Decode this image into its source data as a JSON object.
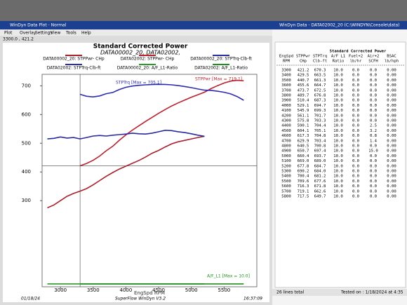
{
  "plot_window": {
    "title": "WinDyn Data Plot - Normal",
    "menu": [
      "Plot",
      "Overlay",
      "Settings",
      "View",
      "Tools",
      "Help"
    ],
    "status": "3300.0 , 421.2",
    "footer": {
      "date": "01/18/24",
      "app": "SuperFlow WinDyn V3.2",
      "time": "16:37:09"
    }
  },
  "chart_data": {
    "type": "line",
    "title": "Standard Corrected Power",
    "subtitle": "DATA00002_20, DATA02002,",
    "x_label": "EngSpd RPM",
    "x": [
      2800,
      2900,
      3000,
      3100,
      3200,
      3300,
      3400,
      3500,
      3600,
      3700,
      3800,
      3900,
      4000,
      4100,
      4200,
      4300,
      4400,
      4500,
      4600,
      4700,
      4800,
      4900,
      5000,
      5100,
      5200,
      5300,
      5400,
      5500,
      5600,
      5700,
      5800
    ],
    "series": [
      {
        "name": "DATA00002_20: STPPwr- CHp",
        "color": "#a8202c",
        "values": [
          275,
          285,
          300,
          315,
          325,
          333,
          342,
          355,
          370,
          385,
          398,
          410,
          420,
          430,
          440,
          452,
          465,
          475,
          487,
          498,
          505,
          510,
          515,
          520,
          524,
          null,
          null,
          null,
          null,
          null,
          null
        ]
      },
      {
        "name": "DATA02002: STPPwr- CHp",
        "color": "#b8222e",
        "values": [
          null,
          null,
          null,
          null,
          null,
          421.2,
          429.5,
          440.7,
          455.6,
          473.7,
          489.7,
          510.4,
          529.1,
          545.9,
          561.1,
          575.8,
          590.1,
          604.1,
          617.3,
          629.9,
          640.5,
          650.7,
          660.4,
          669.0,
          677.8,
          690.2,
          700.4,
          709.6,
          716.3,
          719.1,
          717.5
        ]
      },
      {
        "name": "DATA00002_20: STPTrq-Clb-ft",
        "color": "#2a2aa0",
        "values": [
          515,
          517,
          522,
          518,
          520,
          515,
          520,
          525,
          527,
          525,
          528,
          530,
          532,
          535,
          533,
          532,
          535,
          540,
          545,
          544,
          540,
          537,
          533,
          528,
          524,
          null,
          null,
          null,
          null,
          null,
          null
        ]
      },
      {
        "name": "DATA02002: STPTrq-Clb-ft",
        "color": "#2c2cb0",
        "values": [
          null,
          null,
          null,
          null,
          null,
          670.3,
          663.5,
          661.3,
          664.7,
          672.5,
          676.8,
          687.3,
          694.7,
          699.3,
          701.7,
          703.3,
          704.4,
          705.1,
          704.8,
          703.4,
          700.8,
          697.4,
          693.7,
          689.0,
          684.7,
          684.0,
          681.2,
          677.6,
          671.8,
          662.6,
          649.7
        ]
      },
      {
        "name": "DATA00002_20: A/F_L1-Ratio",
        "color": "#2a9a2a",
        "values": [
          10,
          10,
          10,
          10,
          10,
          10,
          10,
          10,
          10,
          10,
          10,
          10,
          10,
          10,
          10,
          10,
          10,
          10,
          10,
          10,
          10,
          10,
          10,
          10,
          10,
          null,
          null,
          null,
          null,
          null,
          null
        ]
      },
      {
        "name": "DATA02002: A/F_L1-Ratio",
        "color": "#1f8f1f",
        "values": [
          null,
          null,
          null,
          null,
          null,
          10,
          10,
          10,
          10,
          10,
          10,
          10,
          10,
          10,
          10,
          10,
          10,
          10,
          10,
          10,
          10,
          10,
          10,
          10,
          10,
          10,
          10,
          10,
          10,
          10,
          10
        ]
      }
    ],
    "annotations": [
      {
        "text": "STPTrq [Max = 705.1]",
        "color": "#2c2cb0"
      },
      {
        "text": "STPPwr [Max = 719.1]",
        "color": "#b8222e"
      },
      {
        "text": "A/F_L1 [Max = 10.0]",
        "color": "#1f8f1f"
      }
    ],
    "xlim": [
      2720,
      6000
    ],
    "xticks": [
      3000,
      3500,
      4000,
      4500,
      5000,
      5500
    ],
    "ylim": [
      0,
      740
    ],
    "yticks": [
      300,
      400,
      500,
      600,
      700
    ]
  },
  "data_window": {
    "title": "WinDyn Data - DATA02002_20 (C:\\WINDYN\\Console\\data)",
    "table_title": "Standard Corrected Power",
    "columns": [
      [
        "EngSpd",
        "RPM"
      ],
      [
        "STPPwr",
        "CHp"
      ],
      [
        "STPTrq",
        "Clb-ft"
      ],
      [
        "A/F L1",
        "Ratio"
      ],
      [
        "Fuel+2",
        "lb/hr"
      ],
      [
        "Air+2",
        "SCFH"
      ],
      [
        "BSAC",
        "lb/hph"
      ]
    ],
    "rows": [
      [
        "3300",
        "421.2",
        "670.3",
        "10.0",
        "0.0",
        "0.0",
        "0.00"
      ],
      [
        "3400",
        "429.5",
        "663.5",
        "10.0",
        "0.0",
        "0.0",
        "0.00"
      ],
      [
        "3500",
        "440.7",
        "661.3",
        "10.0",
        "0.0",
        "0.0",
        "0.00"
      ],
      [
        "3600",
        "455.6",
        "664.7",
        "10.0",
        "0.0",
        "0.0",
        "0.00"
      ],
      [
        "3700",
        "473.7",
        "672.5",
        "10.0",
        "0.0",
        "0.0",
        "0.00"
      ],
      [
        "3800",
        "489.7",
        "676.8",
        "10.0",
        "0.0",
        "0.0",
        "0.00"
      ],
      [
        "3900",
        "510.4",
        "687.3",
        "10.0",
        "0.0",
        "0.0",
        "0.00"
      ],
      [
        "4000",
        "529.1",
        "694.7",
        "10.0",
        "0.0",
        "0.0",
        "0.00"
      ],
      [
        "4100",
        "545.9",
        "699.3",
        "10.0",
        "0.0",
        "0.0",
        "0.00"
      ],
      [
        "4200",
        "561.1",
        "701.7",
        "10.0",
        "0.0",
        "0.0",
        "0.00"
      ],
      [
        "4300",
        "575.8",
        "703.3",
        "10.0",
        "0.0",
        "0.0",
        "0.00"
      ],
      [
        "4400",
        "590.1",
        "704.4",
        "10.0",
        "0.0",
        "2.5",
        "0.00"
      ],
      [
        "4500",
        "604.1",
        "705.1",
        "10.0",
        "0.0",
        "3.2",
        "0.00"
      ],
      [
        "4600",
        "617.3",
        "704.8",
        "10.0",
        "0.0",
        "0.8",
        "0.00"
      ],
      [
        "4700",
        "629.9",
        "703.4",
        "10.0",
        "0.0",
        "1.4",
        "0.00"
      ],
      [
        "4800",
        "640.5",
        "700.8",
        "10.0",
        "0.0",
        "0.0",
        "0.00"
      ],
      [
        "4900",
        "650.7",
        "697.4",
        "10.0",
        "0.0",
        "15.0",
        "0.00"
      ],
      [
        "5000",
        "660.4",
        "693.7",
        "10.0",
        "0.0",
        "0.0",
        "0.00"
      ],
      [
        "5100",
        "669.0",
        "689.0",
        "10.0",
        "0.0",
        "0.0",
        "0.00"
      ],
      [
        "5200",
        "677.8",
        "684.7",
        "10.0",
        "0.0",
        "0.0",
        "0.00"
      ],
      [
        "5300",
        "690.2",
        "684.0",
        "10.0",
        "0.0",
        "0.0",
        "0.00"
      ],
      [
        "5400",
        "700.4",
        "681.2",
        "10.0",
        "0.0",
        "0.0",
        "0.00"
      ],
      [
        "5500",
        "709.6",
        "677.6",
        "10.0",
        "0.0",
        "0.0",
        "0.00"
      ],
      [
        "5600",
        "716.3",
        "671.8",
        "10.0",
        "0.0",
        "0.0",
        "0.00"
      ],
      [
        "5700",
        "719.1",
        "662.6",
        "10.0",
        "0.0",
        "0.0",
        "0.00"
      ],
      [
        "5800",
        "717.5",
        "649.7",
        "10.0",
        "0.0",
        "0.0",
        "0.00"
      ]
    ],
    "status_left": "26 lines total",
    "status_right": "Tested on : 1/18/2024 at 4:35"
  }
}
